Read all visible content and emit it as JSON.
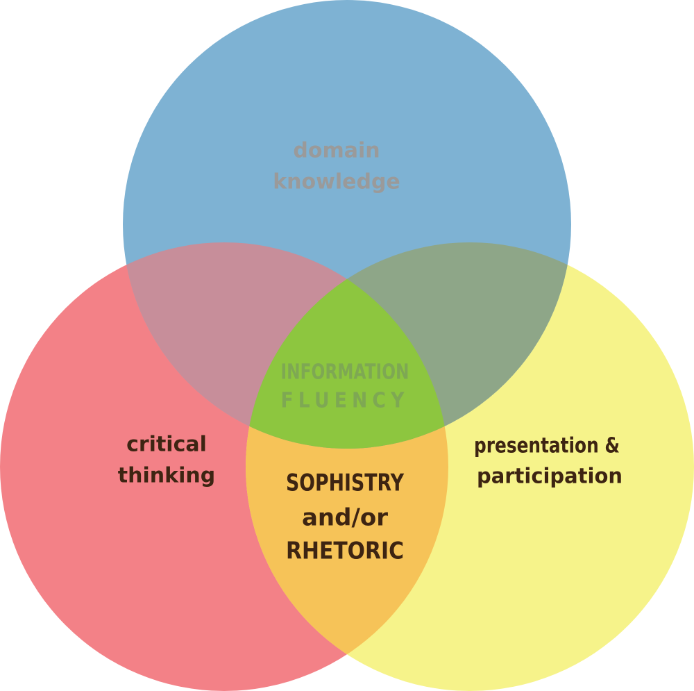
{
  "circles": {
    "top": {
      "label": [
        "domain",
        "knowledge"
      ]
    },
    "left": {
      "label": [
        "critical",
        "thinking"
      ]
    },
    "right": {
      "label": [
        "presentation &",
        "participation"
      ]
    }
  },
  "overlaps": {
    "left_right": {
      "label": [
        "SOPHISTRY",
        "and/or",
        "RHETORIC"
      ]
    },
    "center": {
      "label": [
        "INFORMATION",
        "FLUENCY"
      ]
    }
  }
}
